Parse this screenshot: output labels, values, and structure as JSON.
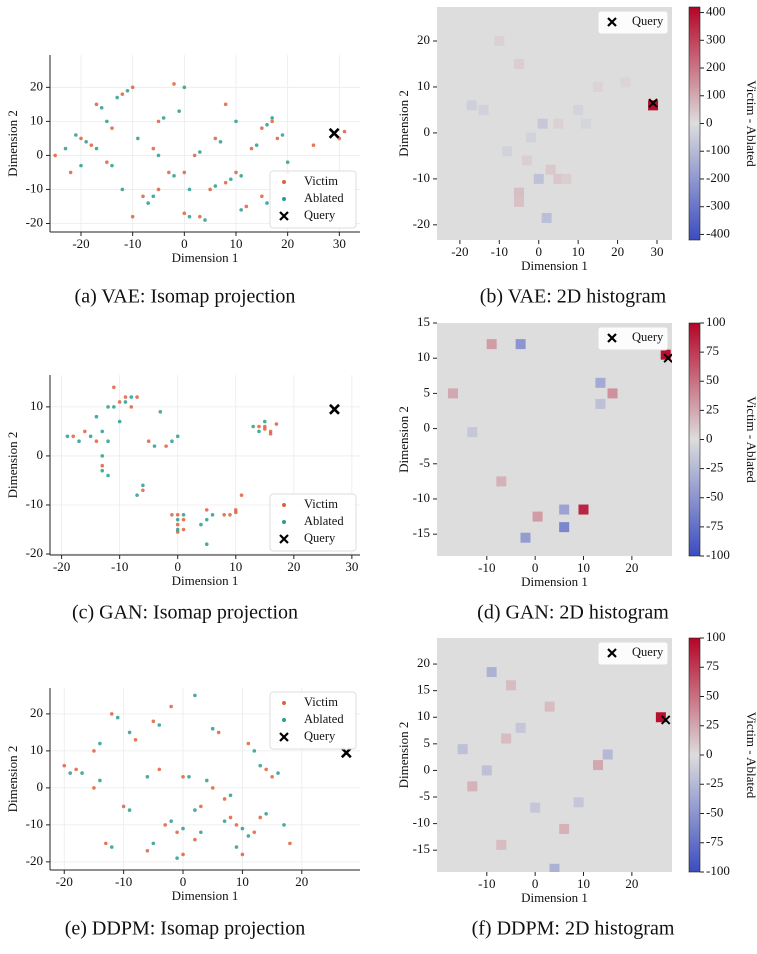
{
  "chart_data": [
    {
      "type": "scatter",
      "caption": "(a) VAE: Isomap projection",
      "xlabel": "Dimension 1",
      "ylabel": "Dimension 2",
      "xlim": [
        -26,
        34
      ],
      "ylim": [
        -22.5,
        29.5
      ],
      "xticks": [
        -20,
        -10,
        0,
        10,
        20,
        30
      ],
      "yticks": [
        -20,
        -10,
        0,
        10,
        20
      ],
      "grid": true,
      "legend_loc": "lower right",
      "series": [
        {
          "name": "Victim",
          "color": "#e0603c",
          "marker": "o",
          "x": [
            -20,
            -18,
            -12,
            -10,
            -5,
            -3,
            -5,
            0,
            3,
            8,
            10,
            15,
            17,
            18,
            -22,
            -15,
            -8,
            2,
            5,
            12,
            -17,
            -2,
            20,
            25,
            31,
            30,
            13,
            -10,
            6,
            -25,
            8,
            -14,
            0,
            15,
            -6
          ],
          "y": [
            5,
            3,
            18,
            20,
            10,
            -5,
            -10,
            -17,
            -18,
            -8,
            -5,
            8,
            10,
            5,
            -5,
            -2,
            -12,
            0,
            -10,
            -15,
            15,
            21,
            -5,
            3,
            7,
            5,
            2,
            -18,
            5,
            0,
            15,
            8,
            -5,
            -12,
            2
          ]
        },
        {
          "name": "Ablated",
          "color": "#2a9d8f",
          "marker": "o",
          "x": [
            -19,
            -21,
            -17,
            -11,
            -13,
            -4,
            -2,
            -6,
            1,
            4,
            9,
            11,
            16,
            17,
            19,
            -20,
            -14,
            -7,
            3,
            6,
            11,
            -16,
            0,
            -9,
            14,
            -12,
            7,
            -23,
            -1,
            -15,
            1,
            16,
            -5,
            20,
            10
          ],
          "y": [
            4,
            6,
            2,
            19,
            17,
            11,
            -6,
            -12,
            -18,
            -19,
            -7,
            -6,
            9,
            11,
            6,
            -3,
            -3,
            -14,
            1,
            -9,
            -16,
            14,
            20,
            5,
            3,
            -10,
            4,
            2,
            13,
            10,
            -10,
            -14,
            0,
            -2,
            10
          ]
        },
        {
          "name": "Query",
          "color": "#000000",
          "marker": "x",
          "x": [
            29
          ],
          "y": [
            6.5
          ]
        }
      ]
    },
    {
      "type": "heatmap",
      "caption": "(b) VAE: 2D histogram",
      "xlabel": "Dimension 1",
      "ylabel": "Dimension 2",
      "xlim": [
        -25.8,
        33.8
      ],
      "ylim": [
        -23.3,
        27.4
      ],
      "xticks": [
        -20,
        -10,
        0,
        10,
        20,
        30
      ],
      "yticks": [
        -20,
        -10,
        0,
        10,
        20
      ],
      "legend_loc": "upper right",
      "colorbar_label": "Victim - Ablated",
      "clim": [
        -420,
        420
      ],
      "cticks": [
        -400,
        -300,
        -200,
        -100,
        0,
        100,
        200,
        300,
        400
      ],
      "colormap": [
        "#3b4cc0",
        "#dddddd",
        "#b40426"
      ],
      "cells": {
        "x": [
          29,
          -17,
          -10,
          -5,
          2,
          0,
          -5,
          -5,
          3,
          5,
          7,
          1,
          -14,
          -8,
          10,
          15,
          -2,
          5,
          12,
          22,
          -3
        ],
        "y": [
          6,
          6,
          20,
          15,
          -18.5,
          -10,
          -13,
          -15,
          -8,
          -10,
          -10,
          2,
          5,
          -4,
          5,
          10,
          -1,
          2,
          2,
          11,
          -6
        ],
        "values": [
          400,
          -40,
          25,
          30,
          -90,
          -80,
          60,
          55,
          40,
          45,
          30,
          -60,
          -35,
          -30,
          -25,
          20,
          -30,
          25,
          -20,
          15,
          30
        ]
      },
      "series": [
        {
          "name": "Query",
          "color": "#000000",
          "marker": "x",
          "x": [
            29
          ],
          "y": [
            6.5
          ]
        }
      ]
    },
    {
      "type": "scatter",
      "caption": "(c) GAN: Isomap projection",
      "xlabel": "Dimension 1",
      "ylabel": "Dimension 2",
      "xlim": [
        -22,
        31.4
      ],
      "ylim": [
        -20.2,
        16.5
      ],
      "xticks": [
        -20,
        -10,
        0,
        10,
        20,
        30
      ],
      "yticks": [
        -20,
        -10,
        0,
        10
      ],
      "grid": true,
      "legend_loc": "lower right",
      "series": [
        {
          "name": "Victim",
          "color": "#e0603c",
          "marker": "o",
          "x": [
            -9,
            -10,
            -8,
            -7,
            -18,
            -16,
            -14,
            0,
            1,
            0,
            -1,
            15,
            16,
            14,
            15,
            10,
            9,
            11,
            -13,
            -6,
            -2,
            -5,
            1,
            5,
            0,
            10,
            17,
            -11,
            8,
            16
          ],
          "y": [
            12,
            11,
            10,
            12,
            4,
            5,
            3,
            -12,
            -13,
            -14,
            -12,
            6,
            5,
            6,
            5.5,
            -11,
            -12,
            -8,
            -2,
            -7,
            2,
            3,
            -15,
            -11,
            -15.5,
            -11.5,
            6.5,
            14,
            -12,
            4.5
          ]
        },
        {
          "name": "Ablated",
          "color": "#2a9d8f",
          "marker": "o",
          "x": [
            -9,
            -11,
            -8,
            -17,
            -15,
            -19,
            -13,
            -12,
            0,
            1,
            5,
            4,
            5,
            6,
            13,
            15,
            14,
            -13,
            -13,
            -12,
            -7,
            -6,
            -4,
            -1,
            0,
            -3,
            -14,
            -10,
            -12,
            0
          ],
          "y": [
            11,
            10,
            12,
            3,
            4,
            4,
            5,
            3,
            -13,
            -12,
            -13,
            -14,
            -18,
            -12,
            6,
            7,
            5,
            0,
            -3,
            -4,
            -8,
            -6,
            2,
            3,
            4,
            9,
            8,
            7,
            10,
            -15
          ]
        },
        {
          "name": "Query",
          "color": "#000000",
          "marker": "x",
          "x": [
            27
          ],
          "y": [
            9.5
          ]
        }
      ]
    },
    {
      "type": "heatmap",
      "caption": "(d) GAN: 2D histogram",
      "xlabel": "Dimension 1",
      "ylabel": "Dimension 2",
      "xlim": [
        -20.3,
        28.3
      ],
      "ylim": [
        -18.1,
        15
      ],
      "xticks": [
        -10,
        0,
        10,
        20
      ],
      "yticks": [
        -15,
        -10,
        -5,
        0,
        5,
        10,
        15
      ],
      "legend_loc": "upper right",
      "colorbar_label": "Victim - Ablated",
      "clim": [
        -100,
        100
      ],
      "cticks": [
        -100,
        -75,
        -50,
        -25,
        0,
        25,
        50,
        75,
        100
      ],
      "colormap": [
        "#3b4cc0",
        "#dddddd",
        "#b40426"
      ],
      "cells": {
        "x": [
          27,
          10,
          16,
          -7,
          -9,
          0.5,
          6,
          6,
          -3,
          -2,
          13.5,
          13.5,
          -17,
          -13
        ],
        "y": [
          10.5,
          -11.5,
          5,
          -7.5,
          12,
          -12.5,
          -11.5,
          -14,
          12,
          -15.5,
          6.5,
          3.5,
          5,
          -0.5
        ],
        "values": [
          95,
          85,
          35,
          20,
          30,
          30,
          -40,
          -60,
          -50,
          -45,
          -35,
          -20,
          25,
          -15
        ]
      },
      "series": [
        {
          "name": "Query",
          "color": "#000000",
          "marker": "x",
          "x": [
            27.5
          ],
          "y": [
            10
          ]
        }
      ]
    },
    {
      "type": "scatter",
      "caption": "(e) DDPM: Isomap projection",
      "xlabel": "Dimension 1",
      "ylabel": "Dimension 2",
      "xlim": [
        -22.4,
        29.8
      ],
      "ylim": [
        -22.2,
        27
      ],
      "xticks": [
        -20,
        -10,
        0,
        10,
        20
      ],
      "yticks": [
        -20,
        -10,
        0,
        10,
        20
      ],
      "grid": true,
      "legend_loc": "upper right",
      "series": [
        {
          "name": "Victim",
          "color": "#e0603c",
          "marker": "o",
          "x": [
            -18,
            -15,
            -12,
            -8,
            -5,
            -3,
            -1,
            2,
            5,
            8,
            9,
            12,
            14,
            15,
            -10,
            -13,
            -6,
            0,
            3,
            6,
            -2,
            18,
            10,
            -15,
            -20,
            11,
            7,
            -4,
            0,
            13
          ],
          "y": [
            5,
            0,
            20,
            13,
            18,
            -10,
            -12,
            -14,
            0,
            -8,
            -10,
            -12,
            5,
            3,
            -5,
            -15,
            -17,
            3,
            -5,
            15,
            22,
            -15,
            -18,
            10,
            6,
            12,
            -3,
            5,
            -18,
            -8
          ]
        },
        {
          "name": "Ablated",
          "color": "#2a9d8f",
          "marker": "o",
          "x": [
            -17,
            -14,
            -11,
            -9,
            -4,
            -2,
            0,
            3,
            4,
            7,
            10,
            11,
            13,
            16,
            -9,
            -12,
            -5,
            1,
            2,
            5,
            2,
            17,
            9,
            -14,
            -19,
            12,
            8,
            -6,
            -1,
            14
          ],
          "y": [
            4,
            2,
            19,
            15,
            17,
            -9,
            -11,
            -12,
            2,
            -9,
            -11,
            -13,
            6,
            4,
            -6,
            -16,
            -15,
            3,
            -6,
            16,
            25,
            -10,
            -16,
            12,
            4,
            10,
            -2,
            3,
            -19,
            -7
          ]
        },
        {
          "name": "Query",
          "color": "#000000",
          "marker": "x",
          "x": [
            27.5
          ],
          "y": [
            9.5
          ]
        }
      ]
    },
    {
      "type": "heatmap",
      "caption": "(f) DDPM: 2D histogram",
      "xlabel": "Dimension 1",
      "ylabel": "Dimension 2",
      "xlim": [
        -20.3,
        28.3
      ],
      "ylim": [
        -19.1,
        24.9
      ],
      "xticks": [
        -10,
        0,
        10,
        20
      ],
      "yticks": [
        -15,
        -10,
        -5,
        0,
        5,
        10,
        15,
        20
      ],
      "legend_loc": "upper right",
      "colorbar_label": "Victim - Ablated",
      "clim": [
        -100,
        100
      ],
      "cticks": [
        -100,
        -75,
        -50,
        -25,
        0,
        25,
        50,
        75,
        100
      ],
      "colormap": [
        "#3b4cc0",
        "#dddddd",
        "#b40426"
      ],
      "cells": {
        "x": [
          26,
          -9,
          -5,
          -15,
          -13,
          -7,
          0,
          6,
          13,
          15,
          4,
          -10,
          -3,
          3,
          -6,
          9
        ],
        "y": [
          10,
          18.5,
          16,
          4,
          -3,
          -14,
          -7,
          -11,
          1,
          3,
          -18.5,
          0,
          8,
          12,
          6,
          -6
        ],
        "values": [
          95,
          -30,
          15,
          -20,
          20,
          15,
          -15,
          20,
          25,
          -25,
          -30,
          -20,
          -15,
          15,
          15,
          -15
        ]
      },
      "series": [
        {
          "name": "Query",
          "color": "#000000",
          "marker": "x",
          "x": [
            27
          ],
          "y": [
            9.5
          ]
        }
      ]
    }
  ]
}
